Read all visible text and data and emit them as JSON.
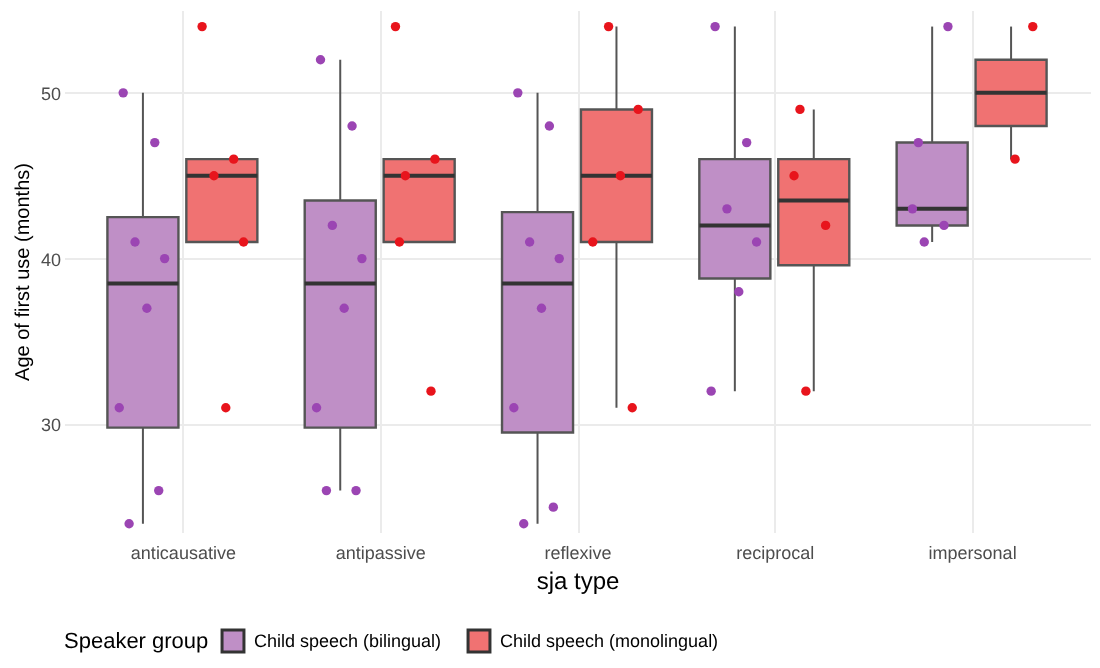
{
  "chart_data": {
    "type": "box",
    "xlabel": "sja type",
    "ylabel": "Age of first use (months)",
    "legend_title": "Speaker group",
    "legend": "bottom",
    "grid": true,
    "categories": [
      "anticausative",
      "antipassive",
      "reflexive",
      "reciprocal",
      "impersonal"
    ],
    "ylim": [
      23.5,
      55
    ],
    "yticks": [
      30,
      40,
      50
    ],
    "series": [
      {
        "name": "Child speech (bilingual)",
        "color": "#bf8fc6",
        "boxes": [
          {
            "low": 24,
            "q1": 29.8,
            "median": 38.5,
            "q3": 42.5,
            "high": 50
          },
          {
            "low": 26,
            "q1": 29.8,
            "median": 38.5,
            "q3": 43.5,
            "high": 52
          },
          {
            "low": 24,
            "q1": 29.5,
            "median": 38.5,
            "q3": 42.8,
            "high": 50
          },
          {
            "low": 32,
            "q1": 38.8,
            "median": 42,
            "q3": 46,
            "high": 54
          },
          {
            "low": 41,
            "q1": 42,
            "median": 43,
            "q3": 47,
            "high": 54
          }
        ]
      },
      {
        "name": "Child speech (monolingual)",
        "color": "#f07272",
        "boxes": [
          {
            "low": 41,
            "q1": 41,
            "median": 45,
            "q3": 46,
            "high": 46
          },
          {
            "low": 41,
            "q1": 41,
            "median": 45,
            "q3": 46,
            "high": 46
          },
          {
            "low": 31,
            "q1": 41,
            "median": 45,
            "q3": 49,
            "high": 54
          },
          {
            "low": 32,
            "q1": 39.6,
            "median": 43.5,
            "q3": 46,
            "high": 49
          },
          {
            "low": 46,
            "q1": 48,
            "median": 50,
            "q3": 52,
            "high": 54
          }
        ]
      },
      {
        "type": "scatter",
        "color": "#9b45b3",
        "x": [
          "anticausative",
          "anticausative",
          "anticausative",
          "anticausative",
          "anticausative",
          "anticausative",
          "anticausative",
          "anticausative",
          "antipassive",
          "antipassive",
          "antipassive",
          "antipassive",
          "antipassive",
          "antipassive",
          "antipassive",
          "antipassive",
          "reflexive",
          "reflexive",
          "reflexive",
          "reflexive",
          "reflexive",
          "reflexive",
          "reflexive",
          "reflexive",
          "reciprocal",
          "reciprocal",
          "reciprocal",
          "reciprocal",
          "reciprocal",
          "reciprocal",
          "impersonal",
          "impersonal",
          "impersonal",
          "impersonal",
          "impersonal"
        ],
        "values": [
          50,
          47,
          41,
          40,
          37,
          31,
          26,
          24,
          52,
          48,
          42,
          40,
          37,
          31,
          26,
          26,
          50,
          48,
          41,
          40,
          37,
          31,
          25,
          24,
          54,
          47,
          43,
          41,
          38,
          32,
          54,
          47,
          43,
          42,
          41
        ]
      },
      {
        "type": "scatter",
        "color": "#e8141c",
        "x": [
          "anticausative",
          "anticausative",
          "anticausative",
          "anticausative",
          "anticausative",
          "antipassive",
          "antipassive",
          "antipassive",
          "antipassive",
          "antipassive",
          "reflexive",
          "reflexive",
          "reflexive",
          "reflexive",
          "reflexive",
          "reciprocal",
          "reciprocal",
          "reciprocal",
          "reciprocal",
          "impersonal",
          "impersonal"
        ],
        "values": [
          54,
          46,
          45,
          41,
          31,
          54,
          46,
          45,
          41,
          32,
          54,
          49,
          45,
          41,
          31,
          49,
          45,
          42,
          32,
          54,
          46
        ]
      }
    ]
  }
}
